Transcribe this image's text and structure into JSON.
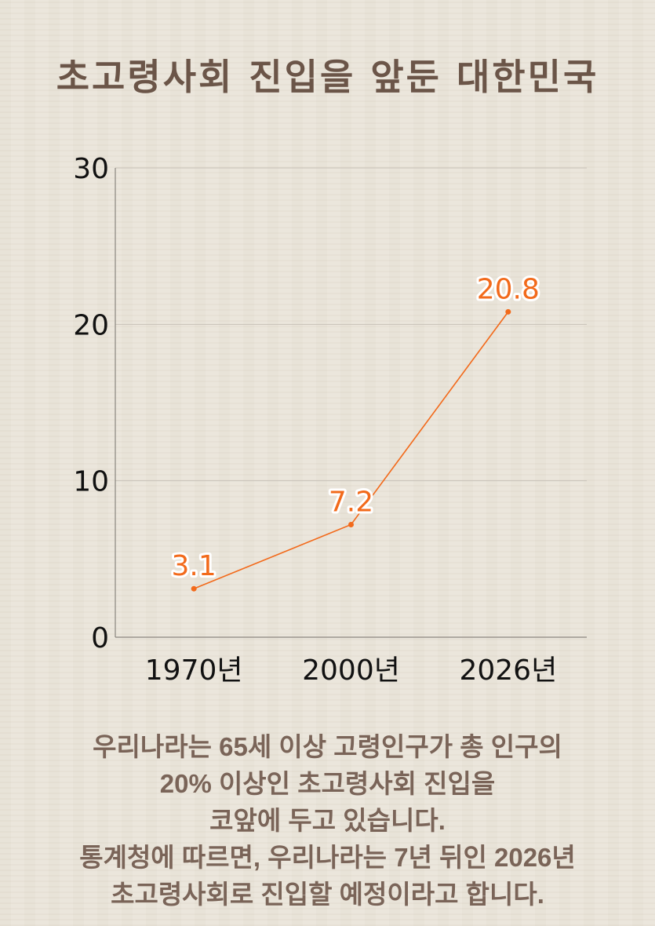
{
  "title": "초고령사회 진입을 앞둔 대한민국",
  "chart_data": {
    "type": "line",
    "categories": [
      "1970년",
      "2000년",
      "2026년"
    ],
    "values": [
      3.1,
      7.2,
      20.8
    ],
    "data_labels": [
      "3.1",
      "7.2",
      "20.8"
    ],
    "ylim": [
      0,
      30
    ],
    "yticks": [
      "0",
      "10",
      "20",
      "30"
    ],
    "grid": true,
    "line_color": "#f26a1b",
    "label_color": "#f26a1b",
    "xlabel": "",
    "ylabel": ""
  },
  "description": [
    "우리나라는 65세 이상 고령인구가 총 인구의",
    "20% 이상인 초고령사회 진입을",
    "코앞에 두고 있습니다.",
    "통계청에 따르면, 우리나라는 7년 뒤인 2026년",
    "초고령사회로 진입할 예정이라고 합니다."
  ]
}
